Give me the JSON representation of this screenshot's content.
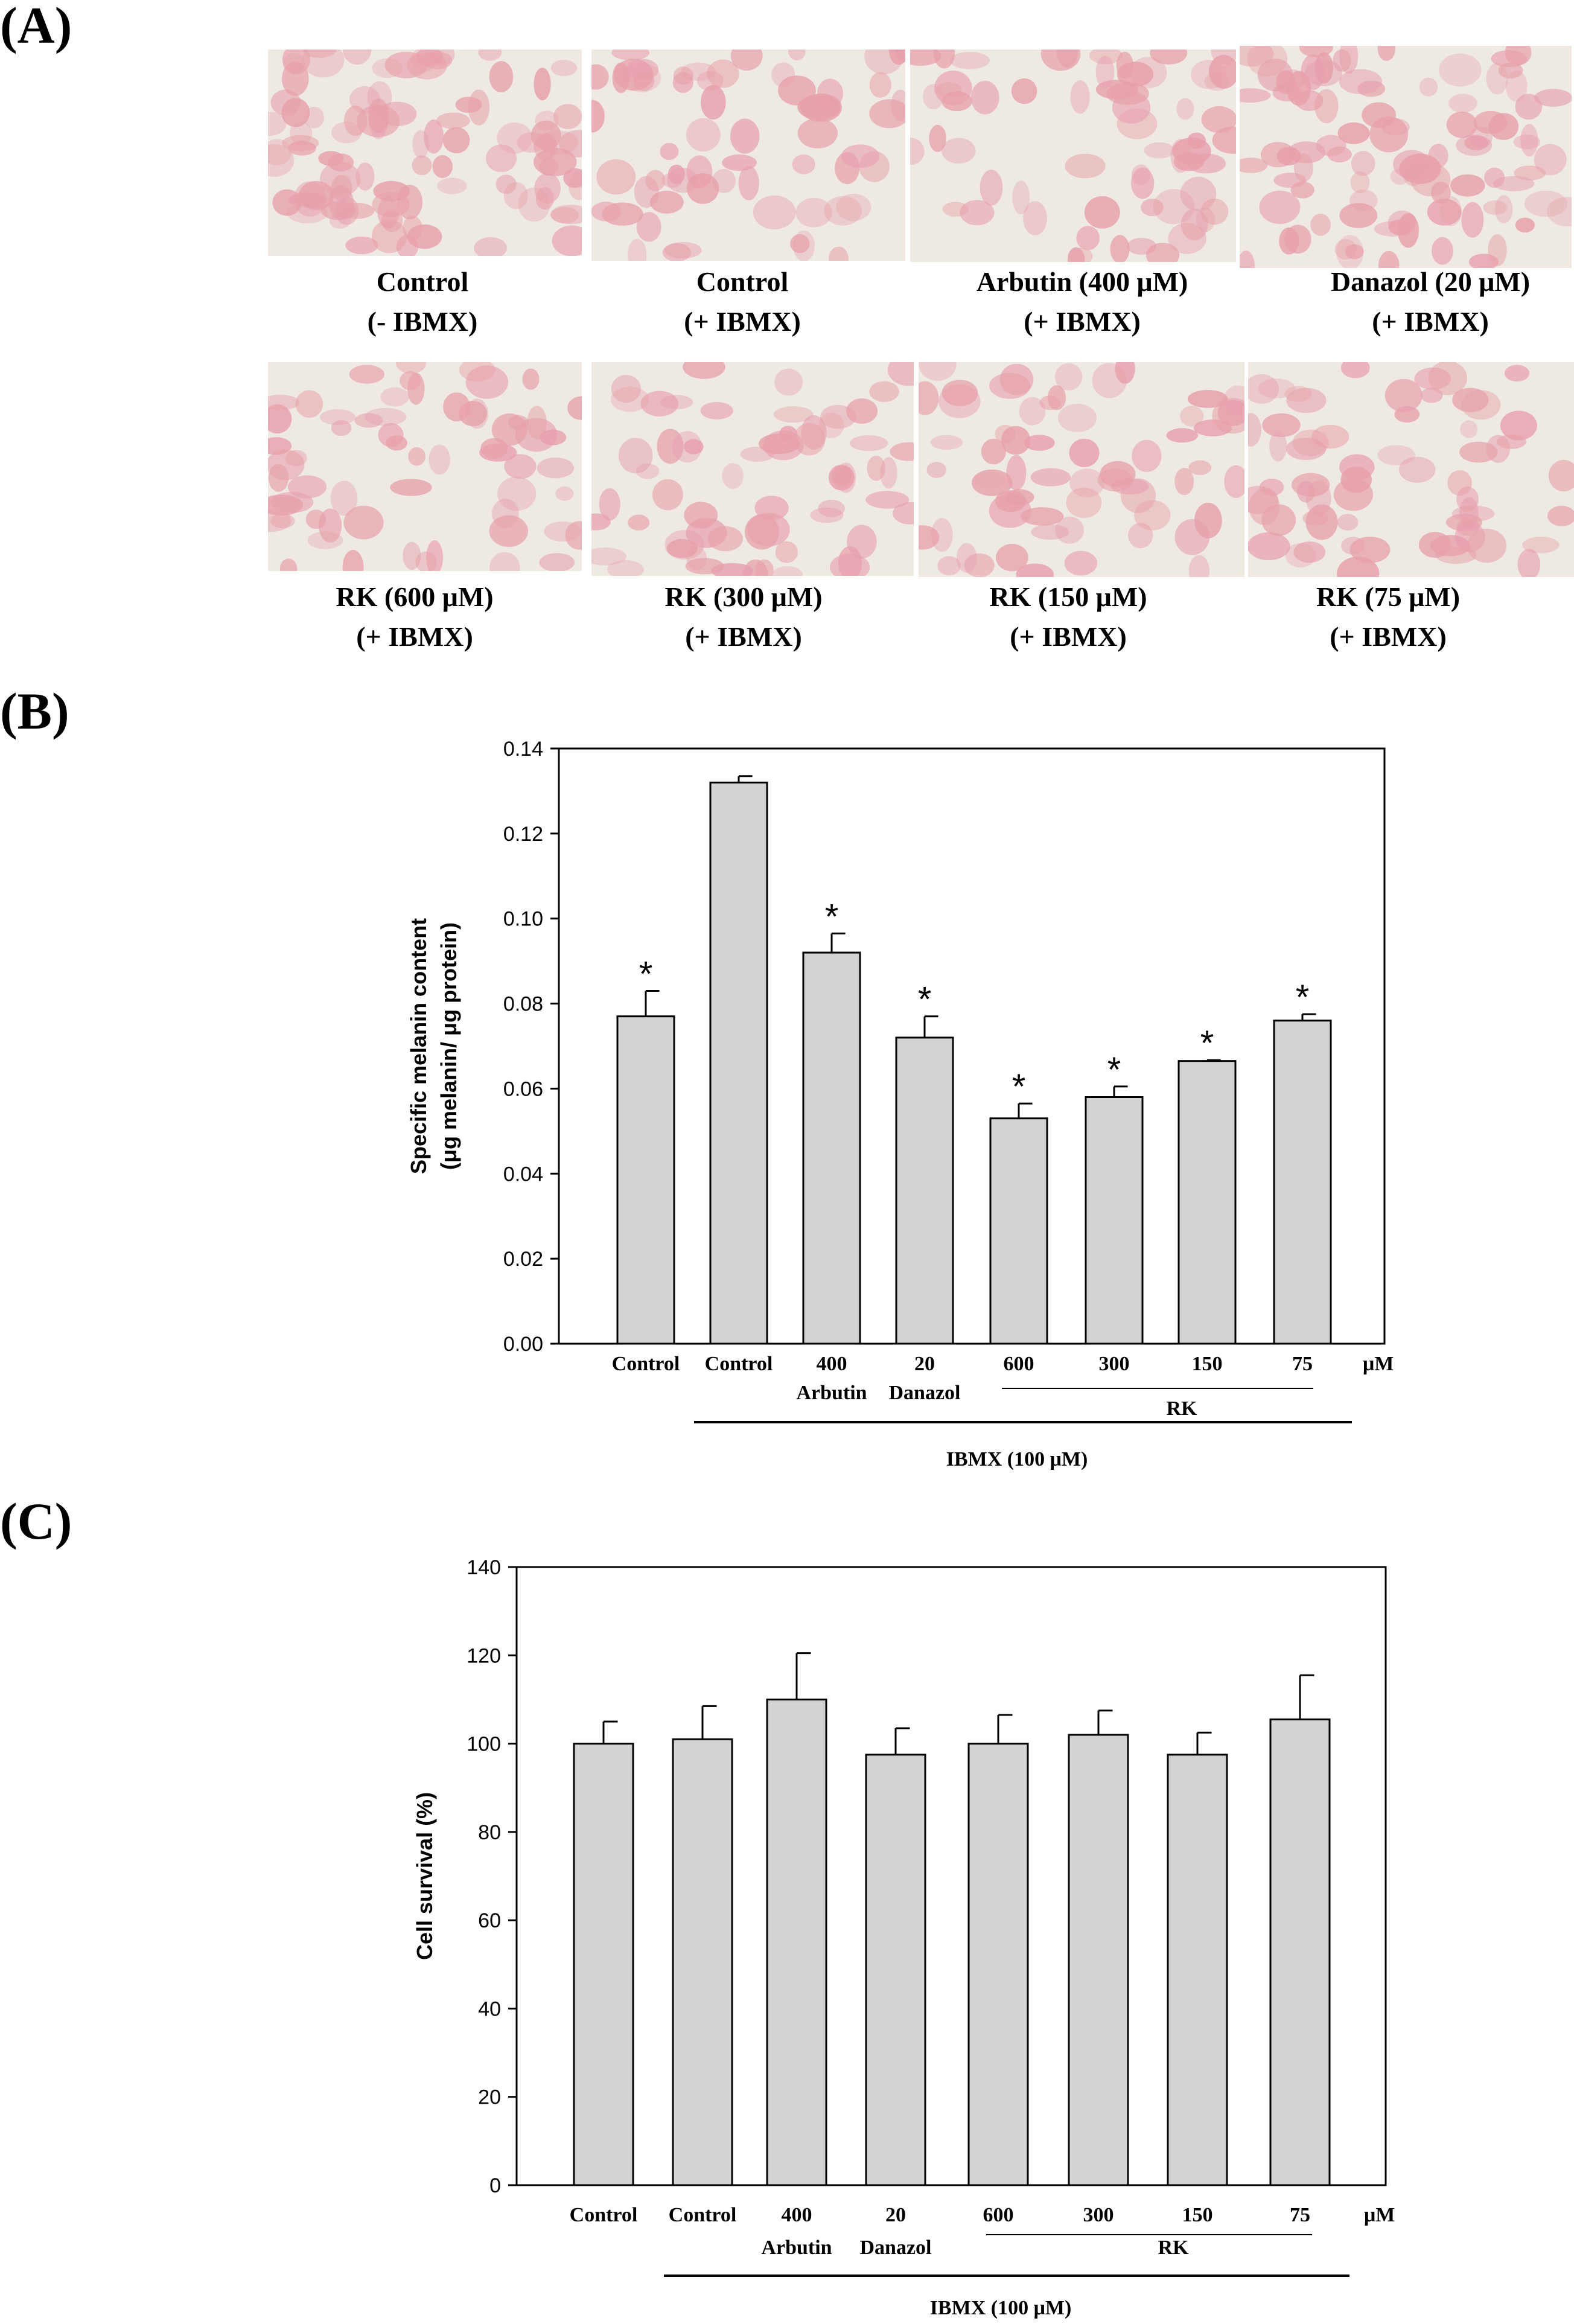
{
  "panel_labels": {
    "a": "(A)",
    "b": "(B)",
    "c": "(C)"
  },
  "micrographs": [
    {
      "caption_line1": "Control",
      "caption_line2": "(- IBMX)"
    },
    {
      "caption_line1": "Control",
      "caption_line2": "(+ IBMX)"
    },
    {
      "caption_line1": "Arbutin (400 μM)",
      "caption_line2": "(+ IBMX)"
    },
    {
      "caption_line1": "Danazol (20 μM)",
      "caption_line2": "(+ IBMX)"
    },
    {
      "caption_line1": "RK (600 μM)",
      "caption_line2": "(+ IBMX)"
    },
    {
      "caption_line1": "RK (300 μM)",
      "caption_line2": "(+ IBMX)"
    },
    {
      "caption_line1": "RK (150 μM)",
      "caption_line2": "(+ IBMX)"
    },
    {
      "caption_line1": "RK (75 μM)",
      "caption_line2": "(+ IBMX)"
    }
  ],
  "colors": {
    "bar_fill": "#d3d3d3",
    "stain": "#e7a0ac",
    "background_field": "#eeeae2"
  },
  "chart_data": [
    {
      "type": "bar",
      "ylabel_line1": "Specific melanin content",
      "ylabel_line2": "(μg melanin/ μg protein)",
      "ylim": [
        0,
        0.14
      ],
      "yticks": [
        "0.00",
        "0.02",
        "0.04",
        "0.06",
        "0.08",
        "0.10",
        "0.12",
        "0.14"
      ],
      "categories": [
        {
          "top": "Control",
          "bottom": ""
        },
        {
          "top": "Control",
          "bottom": ""
        },
        {
          "top": "400",
          "bottom": "Arbutin"
        },
        {
          "top": "20",
          "bottom": "Danazol"
        },
        {
          "top": "600",
          "bottom": ""
        },
        {
          "top": "300",
          "bottom": ""
        },
        {
          "top": "150",
          "bottom": ""
        },
        {
          "top": "75",
          "bottom": ""
        }
      ],
      "values": [
        0.077,
        0.132,
        0.092,
        0.072,
        0.053,
        0.058,
        0.0665,
        0.076
      ],
      "errors": [
        0.006,
        0.0015,
        0.0045,
        0.005,
        0.0035,
        0.0025,
        0.0002,
        0.0015
      ],
      "significance": [
        "*",
        "",
        "*",
        "*",
        "*",
        "*",
        "*",
        "*"
      ],
      "unit_label": "μM",
      "group_label": "RK",
      "treatment_label": "IBMX (100 μM)"
    },
    {
      "type": "bar",
      "ylabel_line1": "Cell survival (%)",
      "ylabel_line2": "",
      "ylim": [
        0,
        140
      ],
      "yticks": [
        "0",
        "20",
        "40",
        "60",
        "80",
        "100",
        "120",
        "140"
      ],
      "categories": [
        {
          "top": "Control",
          "bottom": ""
        },
        {
          "top": "Control",
          "bottom": ""
        },
        {
          "top": "400",
          "bottom": "Arbutin"
        },
        {
          "top": "20",
          "bottom": "Danazol"
        },
        {
          "top": "600",
          "bottom": ""
        },
        {
          "top": "300",
          "bottom": ""
        },
        {
          "top": "150",
          "bottom": ""
        },
        {
          "top": "75",
          "bottom": ""
        }
      ],
      "values": [
        100,
        101,
        110,
        97.5,
        100,
        102,
        97.5,
        105.5
      ],
      "errors": [
        5,
        7.5,
        10.5,
        6,
        6.5,
        5.5,
        5,
        10
      ],
      "significance": [
        "",
        "",
        "",
        "",
        "",
        "",
        "",
        ""
      ],
      "unit_label": "μM",
      "group_label": "RK",
      "treatment_label": "IBMX (100 μM)"
    }
  ]
}
